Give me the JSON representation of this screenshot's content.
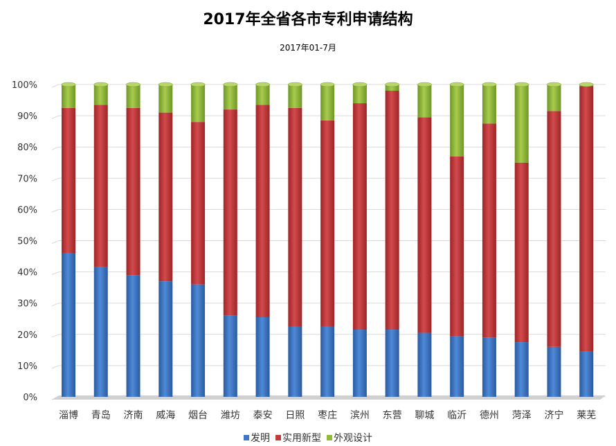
{
  "chart_data": {
    "type": "bar",
    "stacked": "percent",
    "title": "2017年全省各市专利申请结构",
    "subtitle": "2017年01-7月",
    "categories": [
      "淄博",
      "青岛",
      "济南",
      "威海",
      "烟台",
      "潍坊",
      "泰安",
      "日照",
      "枣庄",
      "滨州",
      "东营",
      "聊城",
      "临沂",
      "德州",
      "菏泽",
      "济宁",
      "莱芜"
    ],
    "series": [
      {
        "name": "发明",
        "color": "#3F78C8",
        "values": [
          46,
          41.5,
          39,
          37,
          36,
          26,
          25.5,
          22.5,
          22.5,
          21.5,
          21.5,
          20.5,
          19.5,
          19,
          17.5,
          16,
          14.5
        ]
      },
      {
        "name": "实用新型",
        "color": "#C0393B",
        "values": [
          46.5,
          52,
          53.5,
          54,
          52,
          66,
          68,
          70,
          66,
          72.5,
          76.5,
          69,
          57.5,
          68.5,
          57.5,
          75.5,
          85
        ]
      },
      {
        "name": "外观设计",
        "color": "#92BB3C",
        "values": [
          7.5,
          6.5,
          7.5,
          9,
          12,
          8,
          6.5,
          7.5,
          11.5,
          6,
          2,
          10.5,
          23,
          12.5,
          25,
          8.5,
          0.5
        ]
      }
    ],
    "y_ticks": [
      "0%",
      "10%",
      "20%",
      "30%",
      "40%",
      "50%",
      "60%",
      "70%",
      "80%",
      "90%",
      "100%"
    ],
    "ylim": [
      0,
      100
    ],
    "grid": true,
    "legend_position": "bottom"
  }
}
